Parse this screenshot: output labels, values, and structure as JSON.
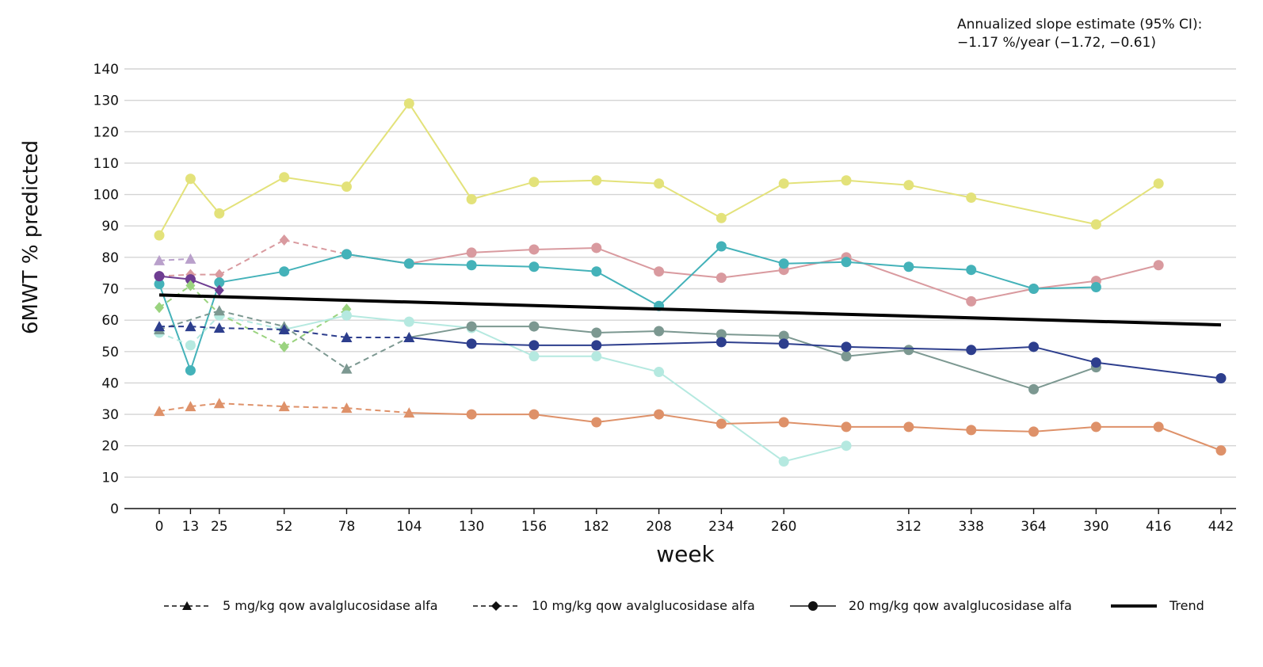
{
  "chart_data": {
    "type": "line",
    "annotation": {
      "line1": "Annualized slope estimate (95% CI):",
      "line2": "−1.17 %/year (−1.72, −0.61)"
    },
    "xlabel": "week",
    "ylabel": "6MWT % predicted",
    "ylim": [
      0,
      140
    ],
    "yticks": [
      0,
      10,
      20,
      30,
      40,
      50,
      60,
      70,
      80,
      90,
      100,
      110,
      120,
      130,
      140
    ],
    "xticks": [
      0,
      13,
      25,
      52,
      78,
      104,
      130,
      156,
      182,
      208,
      234,
      260,
      312,
      338,
      364,
      390,
      416,
      442
    ],
    "grid": "horizontal",
    "legend_position": "bottom",
    "legend": [
      {
        "key": "dose5",
        "label": "5 mg/kg qow avalglucosidase alfa",
        "style": "dashed",
        "marker": "triangle"
      },
      {
        "key": "dose10",
        "label": "10 mg/kg qow avalglucosidase alfa",
        "style": "dashed",
        "marker": "diamond"
      },
      {
        "key": "dose20",
        "label": "20 mg/kg qow avalglucosidase alfa",
        "style": "solid",
        "marker": "circle"
      },
      {
        "key": "trend",
        "label": "Trend",
        "style": "solid-thick",
        "marker": "none"
      }
    ],
    "trend": {
      "x": [
        0,
        442
      ],
      "y": [
        68,
        58.5
      ]
    },
    "series": [
      {
        "color": "#e3e27a",
        "points": [
          [
            0,
            87,
            "circle",
            "solid"
          ],
          [
            13,
            105,
            "circle",
            "solid"
          ],
          [
            25,
            94,
            "circle",
            "solid"
          ],
          [
            52,
            105.5,
            "circle",
            "solid"
          ],
          [
            78,
            102.5,
            "circle",
            "solid"
          ],
          [
            104,
            129,
            "circle",
            "solid"
          ],
          [
            130,
            98.5,
            "circle",
            "solid"
          ],
          [
            156,
            104,
            "circle",
            "solid"
          ],
          [
            182,
            104.5,
            "circle",
            "solid"
          ],
          [
            208,
            103.5,
            "circle",
            "solid"
          ],
          [
            234,
            92.5,
            "circle",
            "solid"
          ],
          [
            260,
            103.5,
            "circle",
            "solid"
          ],
          [
            286,
            104.5,
            "circle",
            "solid"
          ],
          [
            312,
            103,
            "circle",
            "solid"
          ],
          [
            338,
            99,
            "circle",
            "solid"
          ],
          [
            390,
            90.5,
            "circle",
            "solid"
          ],
          [
            416,
            103.5,
            "circle",
            "solid"
          ]
        ]
      },
      {
        "color": "#d99a9f",
        "points": [
          [
            0,
            74,
            "diamond",
            "dashed"
          ],
          [
            13,
            74.5,
            "diamond",
            "dashed"
          ],
          [
            25,
            74.5,
            "diamond",
            "dashed"
          ],
          [
            52,
            85.5,
            "diamond",
            "dashed"
          ],
          [
            78,
            81,
            "circle",
            "dashed"
          ],
          [
            104,
            78,
            "circle",
            "solid"
          ],
          [
            130,
            81.5,
            "circle",
            "solid"
          ],
          [
            156,
            82.5,
            "circle",
            "solid"
          ],
          [
            182,
            83,
            "circle",
            "solid"
          ],
          [
            208,
            75.5,
            "circle",
            "solid"
          ],
          [
            234,
            73.5,
            "circle",
            "solid"
          ],
          [
            260,
            76,
            "circle",
            "solid"
          ],
          [
            286,
            80,
            "circle",
            "solid"
          ],
          [
            338,
            66,
            "circle",
            "solid"
          ],
          [
            364,
            70,
            "circle",
            "solid"
          ],
          [
            390,
            72.5,
            "circle",
            "solid"
          ],
          [
            416,
            77.5,
            "circle",
            "solid"
          ]
        ]
      },
      {
        "color": "#44b2b9",
        "points": [
          [
            0,
            71.5,
            "circle",
            "solid"
          ],
          [
            13,
            44,
            "circle",
            "solid"
          ],
          [
            25,
            72,
            "circle",
            "solid"
          ],
          [
            52,
            75.5,
            "circle",
            "solid"
          ],
          [
            78,
            81,
            "circle",
            "solid"
          ],
          [
            104,
            78,
            "circle",
            "solid"
          ],
          [
            130,
            77.5,
            "circle",
            "solid"
          ],
          [
            156,
            77,
            "circle",
            "solid"
          ],
          [
            182,
            75.5,
            "circle",
            "solid"
          ],
          [
            208,
            64.5,
            "circle",
            "solid"
          ],
          [
            234,
            83.5,
            "circle",
            "solid"
          ],
          [
            260,
            78,
            "circle",
            "solid"
          ],
          [
            286,
            78.5,
            "circle",
            "solid"
          ],
          [
            312,
            77,
            "circle",
            "solid"
          ],
          [
            338,
            76,
            "circle",
            "solid"
          ],
          [
            364,
            70,
            "circle",
            "solid"
          ],
          [
            390,
            70.5,
            "circle",
            "solid"
          ]
        ]
      },
      {
        "color": "#b9a0cb",
        "points": [
          [
            0,
            79,
            "triangle",
            "dashed"
          ],
          [
            13,
            79.5,
            "triangle",
            "dashed"
          ]
        ]
      },
      {
        "color": "#6e3d92",
        "points": [
          [
            0,
            74,
            "circle",
            "solid"
          ],
          [
            13,
            73,
            "circle",
            "solid"
          ],
          [
            25,
            69.5,
            "diamond",
            "solid"
          ]
        ]
      },
      {
        "color": "#9ad37f",
        "points": [
          [
            0,
            64,
            "diamond",
            "dashed"
          ],
          [
            13,
            71,
            "diamond",
            "dashed"
          ],
          [
            25,
            62,
            "diamond",
            "dashed"
          ],
          [
            52,
            51.5,
            "diamond",
            "dashed"
          ],
          [
            78,
            63.5,
            "diamond",
            "dashed"
          ]
        ]
      },
      {
        "color": "#b5e9e0",
        "points": [
          [
            0,
            56,
            "circle",
            "dashed"
          ],
          [
            13,
            52,
            "circle",
            "dashed"
          ],
          [
            25,
            61.5,
            "circle",
            "dashed"
          ],
          [
            52,
            57,
            "circle",
            "dashed"
          ],
          [
            78,
            61.5,
            "circle",
            "solid"
          ],
          [
            104,
            59.5,
            "circle",
            "solid"
          ],
          [
            130,
            57.5,
            "circle",
            "solid"
          ],
          [
            156,
            48.5,
            "circle",
            "solid"
          ],
          [
            182,
            48.5,
            "circle",
            "solid"
          ],
          [
            208,
            43.5,
            "circle",
            "solid"
          ],
          [
            260,
            15,
            "circle",
            "solid"
          ],
          [
            286,
            20,
            "circle",
            "solid"
          ]
        ]
      },
      {
        "color": "#7c9891",
        "points": [
          [
            0,
            57,
            "triangle",
            "dashed"
          ],
          [
            25,
            63,
            "triangle",
            "dashed"
          ],
          [
            52,
            58,
            "triangle",
            "dashed"
          ],
          [
            78,
            44.5,
            "triangle",
            "dashed"
          ],
          [
            104,
            54.5,
            "triangle",
            "dashed"
          ],
          [
            130,
            58,
            "circle",
            "solid"
          ],
          [
            156,
            58,
            "circle",
            "solid"
          ],
          [
            182,
            56,
            "circle",
            "solid"
          ],
          [
            208,
            56.5,
            "circle",
            "solid"
          ],
          [
            234,
            55.5,
            "circle",
            "solid"
          ],
          [
            260,
            55,
            "circle",
            "solid"
          ],
          [
            286,
            48.5,
            "circle",
            "solid"
          ],
          [
            312,
            50.5,
            "circle",
            "solid"
          ],
          [
            364,
            38,
            "circle",
            "solid"
          ],
          [
            390,
            45,
            "circle",
            "solid"
          ]
        ]
      },
      {
        "color": "#2d3e8d",
        "points": [
          [
            0,
            58,
            "triangle",
            "dashed"
          ],
          [
            13,
            58,
            "triangle",
            "dashed"
          ],
          [
            25,
            57.5,
            "triangle",
            "dashed"
          ],
          [
            52,
            57,
            "triangle",
            "dashed"
          ],
          [
            78,
            54.5,
            "triangle",
            "dashed"
          ],
          [
            104,
            54.5,
            "triangle",
            "dashed"
          ],
          [
            130,
            52.5,
            "circle",
            "solid"
          ],
          [
            156,
            52,
            "circle",
            "solid"
          ],
          [
            182,
            52,
            "circle",
            "solid"
          ],
          [
            234,
            53,
            "circle",
            "solid"
          ],
          [
            260,
            52.5,
            "circle",
            "solid"
          ],
          [
            286,
            51.5,
            "circle",
            "solid"
          ],
          [
            338,
            50.5,
            "circle",
            "solid"
          ],
          [
            364,
            51.5,
            "circle",
            "solid"
          ],
          [
            390,
            46.5,
            "circle",
            "solid"
          ],
          [
            442,
            41.5,
            "circle",
            "solid"
          ]
        ]
      },
      {
        "color": "#de9169",
        "points": [
          [
            0,
            31,
            "triangle",
            "dashed"
          ],
          [
            13,
            32.5,
            "triangle",
            "dashed"
          ],
          [
            25,
            33.5,
            "triangle",
            "dashed"
          ],
          [
            52,
            32.5,
            "triangle",
            "dashed"
          ],
          [
            78,
            32,
            "triangle",
            "dashed"
          ],
          [
            104,
            30.5,
            "triangle",
            "dashed"
          ],
          [
            130,
            30,
            "circle",
            "solid"
          ],
          [
            156,
            30,
            "circle",
            "solid"
          ],
          [
            182,
            27.5,
            "circle",
            "solid"
          ],
          [
            208,
            30,
            "circle",
            "solid"
          ],
          [
            234,
            27,
            "circle",
            "solid"
          ],
          [
            260,
            27.5,
            "circle",
            "solid"
          ],
          [
            286,
            26,
            "circle",
            "solid"
          ],
          [
            312,
            26,
            "circle",
            "solid"
          ],
          [
            338,
            25,
            "circle",
            "solid"
          ],
          [
            364,
            24.5,
            "circle",
            "solid"
          ],
          [
            390,
            26,
            "circle",
            "solid"
          ],
          [
            416,
            26,
            "circle",
            "solid"
          ],
          [
            442,
            18.5,
            "circle",
            "solid"
          ]
        ]
      }
    ]
  }
}
